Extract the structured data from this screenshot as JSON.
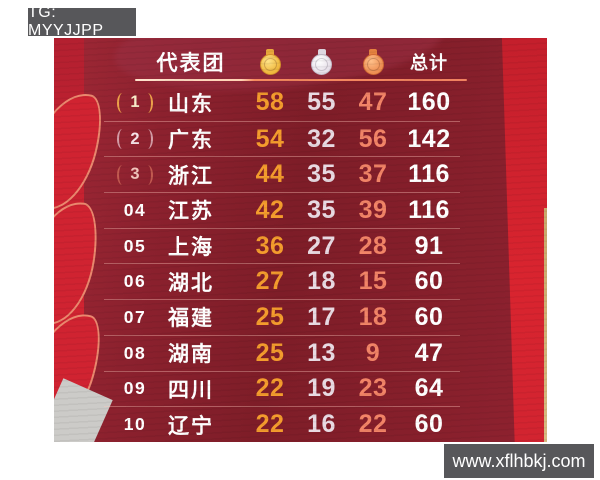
{
  "watermarks": {
    "top": "TG: MYYJJPP",
    "bottom": "www.xflhbkj.com"
  },
  "table": {
    "header": {
      "delegation": "代表团",
      "total": "总计",
      "medal_icons": [
        "gold-medal-icon",
        "silver-medal-icon",
        "bronze-medal-icon"
      ]
    },
    "rows": [
      {
        "rank": "1",
        "wreath": true,
        "name": "山东",
        "gold": 58,
        "silver": 55,
        "bronze": 47,
        "total": 160
      },
      {
        "rank": "2",
        "wreath": true,
        "name": "广东",
        "gold": 54,
        "silver": 32,
        "bronze": 56,
        "total": 142
      },
      {
        "rank": "3",
        "wreath": true,
        "name": "浙江",
        "gold": 44,
        "silver": 35,
        "bronze": 37,
        "total": 116
      },
      {
        "rank": "04",
        "wreath": false,
        "name": "江苏",
        "gold": 42,
        "silver": 35,
        "bronze": 39,
        "total": 116
      },
      {
        "rank": "05",
        "wreath": false,
        "name": "上海",
        "gold": 36,
        "silver": 27,
        "bronze": 28,
        "total": 91
      },
      {
        "rank": "06",
        "wreath": false,
        "name": "湖北",
        "gold": 27,
        "silver": 18,
        "bronze": 15,
        "total": 60
      },
      {
        "rank": "07",
        "wreath": false,
        "name": "福建",
        "gold": 25,
        "silver": 17,
        "bronze": 18,
        "total": 60
      },
      {
        "rank": "08",
        "wreath": false,
        "name": "湖南",
        "gold": 25,
        "silver": 13,
        "bronze": 9,
        "total": 47
      },
      {
        "rank": "09",
        "wreath": false,
        "name": "四川",
        "gold": 22,
        "silver": 19,
        "bronze": 23,
        "total": 64
      },
      {
        "rank": "10",
        "wreath": false,
        "name": "辽宁",
        "gold": 22,
        "silver": 16,
        "bronze": 22,
        "total": 60
      }
    ]
  },
  "colors": {
    "poster_red": "#8c212e",
    "bright_red": "#d0222f",
    "gold": "#f49c2d",
    "silver": "#e8dae2",
    "bronze": "#f28467",
    "total_white": "#ffffff",
    "badge_gray": "#57575a",
    "tan_edge": "#c9a76a"
  },
  "chart_data": {
    "type": "table",
    "columns": [
      "rank",
      "delegation",
      "gold",
      "silver",
      "bronze",
      "total"
    ],
    "header_labels": {
      "delegation": "代表团",
      "gold": "gold-medal-icon",
      "silver": "silver-medal-icon",
      "bronze": "bronze-medal-icon",
      "total": "总计"
    },
    "rows": [
      [
        "1",
        "山东",
        58,
        55,
        47,
        160
      ],
      [
        "2",
        "广东",
        54,
        32,
        56,
        142
      ],
      [
        "3",
        "浙江",
        44,
        35,
        37,
        116
      ],
      [
        "04",
        "江苏",
        42,
        35,
        39,
        116
      ],
      [
        "05",
        "上海",
        36,
        27,
        28,
        91
      ],
      [
        "06",
        "湖北",
        27,
        18,
        15,
        60
      ],
      [
        "07",
        "福建",
        25,
        17,
        18,
        60
      ],
      [
        "08",
        "湖南",
        25,
        13,
        9,
        47
      ],
      [
        "09",
        "四川",
        22,
        19,
        23,
        64
      ],
      [
        "10",
        "辽宁",
        22,
        16,
        22,
        60
      ]
    ]
  }
}
